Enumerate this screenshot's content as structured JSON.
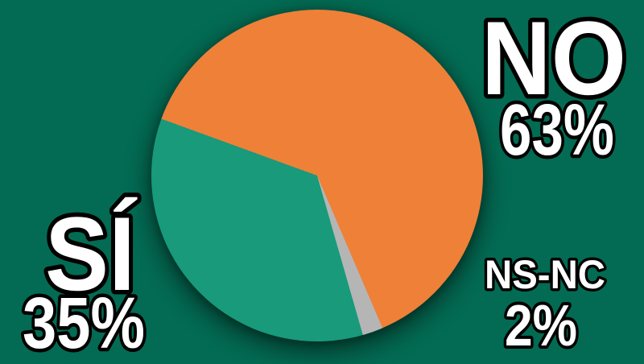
{
  "chart_data": {
    "type": "pie",
    "title": "",
    "total": 100,
    "start_angle_deg": -70,
    "direction": "clockwise",
    "legend": "none",
    "labels_position": "outside",
    "background_color": "#036b53",
    "label_text_color": "#ffffff",
    "label_outline_color": "#000000",
    "slices": [
      {
        "label": "NO",
        "value": 63,
        "display": "63%",
        "color": "#ef8038"
      },
      {
        "label": "NS-NC",
        "value": 2,
        "display": "2%",
        "color": "#b5b5b5"
      },
      {
        "label": "SÍ",
        "value": 35,
        "display": "35%",
        "color": "#189a7b"
      }
    ]
  }
}
